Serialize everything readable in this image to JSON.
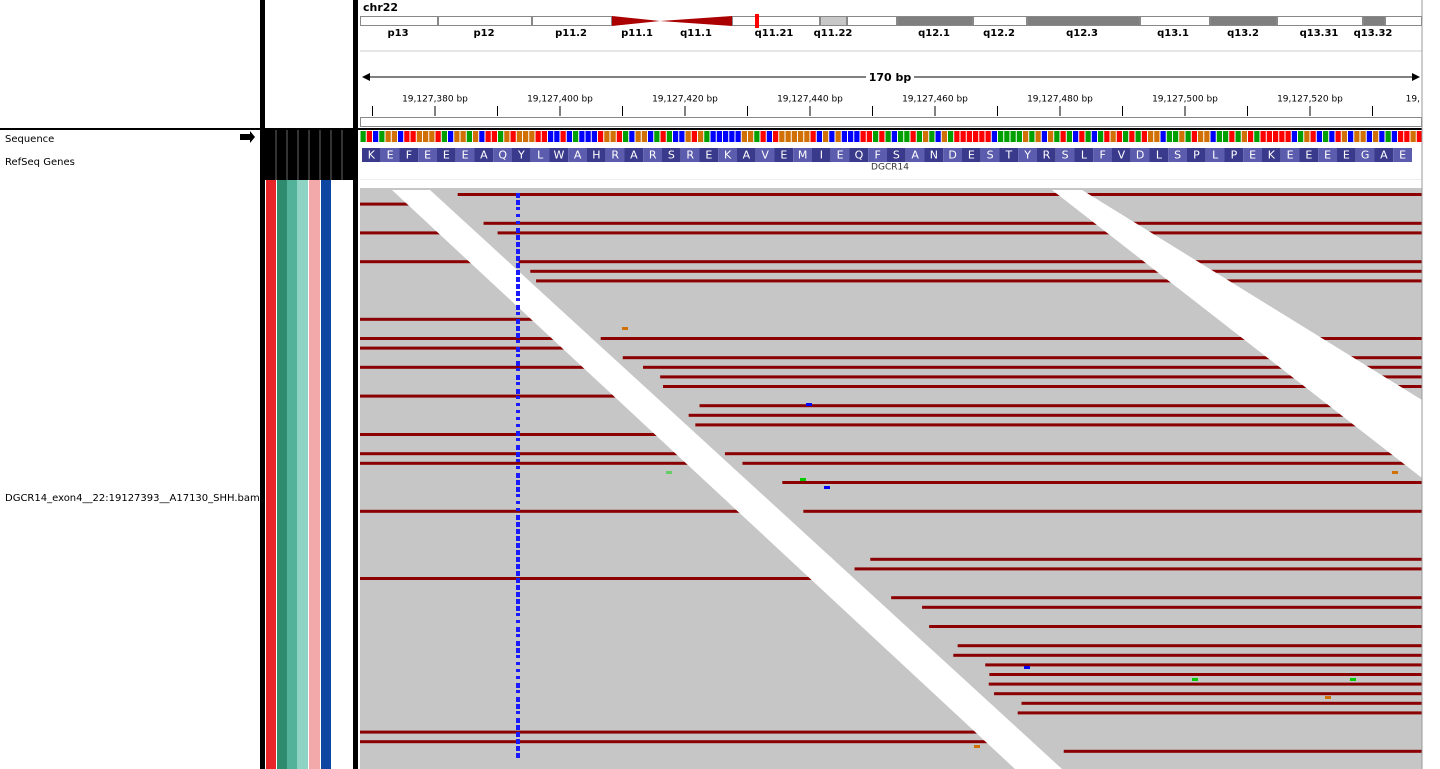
{
  "header": {
    "chromosome": "chr22",
    "span": "170 bp"
  },
  "cytobands": [
    "p13",
    "p12",
    "p11.2",
    "p11.1",
    "q11.1",
    "q11.21",
    "q11.22",
    "q12.1",
    "q12.2",
    "q12.3",
    "q13.1",
    "q13.2",
    "q13.31",
    "q13.32"
  ],
  "ruler_ticks": [
    "19,127,380 bp",
    "19,127,400 bp",
    "19,127,420 bp",
    "19,127,440 bp",
    "19,127,460 bp",
    "19,127,480 bp",
    "19,127,500 bp",
    "19,127,520 bp",
    "19,"
  ],
  "tracks": [
    "Sequence",
    "RefSeq Genes",
    "DGCR14_exon4__22:19127393__A17130_SHH.bam"
  ],
  "amino_acids": [
    "K",
    "E",
    "F",
    "E",
    "E",
    "E",
    "A",
    "Q",
    "Y",
    "L",
    "W",
    "A",
    "H",
    "R",
    "A",
    "R",
    "S",
    "R",
    "E",
    "K",
    "A",
    "V",
    "E",
    "M",
    "I",
    "E",
    "Q",
    "F",
    "S",
    "A",
    "N",
    "D",
    "E",
    "S",
    "T",
    "Y",
    "R",
    "S",
    "L",
    "F",
    "V",
    "D",
    "L",
    "S",
    "P",
    "L",
    "P",
    "E",
    "K",
    "E",
    "E",
    "E",
    "E",
    "G",
    "A",
    "E"
  ],
  "gene": "DGCR14"
}
